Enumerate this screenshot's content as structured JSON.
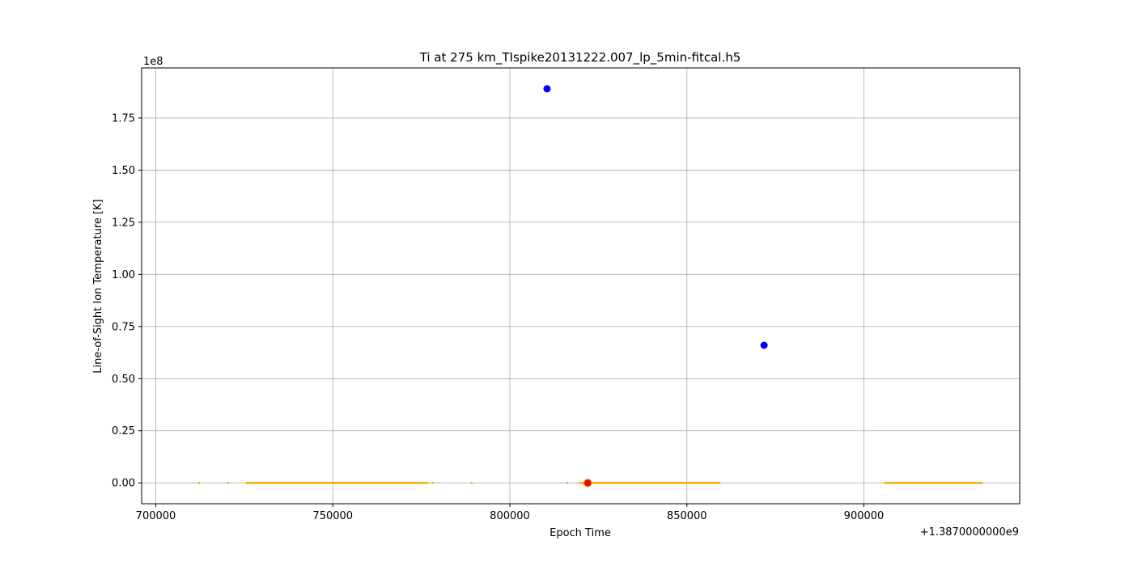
{
  "chart_data": {
    "type": "scatter",
    "title": "Ti at 275 km_TIspike20131222.007_lp_5min-fitcal.h5",
    "xlabel": "Epoch Time",
    "ylabel": "Line-of-Sight Ion Temperature [K]",
    "x_offset_text": "+1.3870000000e9",
    "y_offset_text": "1e8",
    "xlim": [
      696000,
      944000
    ],
    "ylim": [
      -1.0,
      19.9
    ],
    "y_scale_multiplier": 100000000,
    "grid": true,
    "x_ticks": [
      700000,
      750000,
      800000,
      850000,
      900000
    ],
    "x_tick_labels": [
      "700000",
      "750000",
      "800000",
      "850000",
      "900000"
    ],
    "y_ticks": [
      0,
      2.5,
      5,
      7.5,
      10,
      12.5,
      15,
      17.5
    ],
    "y_tick_labels": [
      "0.00",
      "0.25",
      "0.50",
      "0.75",
      "1.00",
      "1.25",
      "1.50",
      "1.75"
    ],
    "colors": {
      "normal": "#ffa500",
      "outlier": "#0000ff",
      "flag": "#ff0000",
      "flag_edge": "#b8860b"
    },
    "series": [
      {
        "style": "orange-small",
        "x_ranges": [
          [
            712000,
            712400
          ],
          [
            720200,
            720400
          ],
          [
            725500,
            777000
          ],
          [
            778000,
            778400
          ],
          [
            789000,
            789400
          ],
          [
            816000,
            816400
          ],
          [
            819500,
            859500
          ],
          [
            905800,
            933500
          ]
        ],
        "y": 0
      },
      {
        "style": "outlier",
        "points": [
          [
            810500,
            18.9
          ],
          [
            871800,
            6.6
          ]
        ]
      },
      {
        "style": "flag",
        "points": [
          [
            822000,
            0.0
          ]
        ]
      }
    ]
  }
}
